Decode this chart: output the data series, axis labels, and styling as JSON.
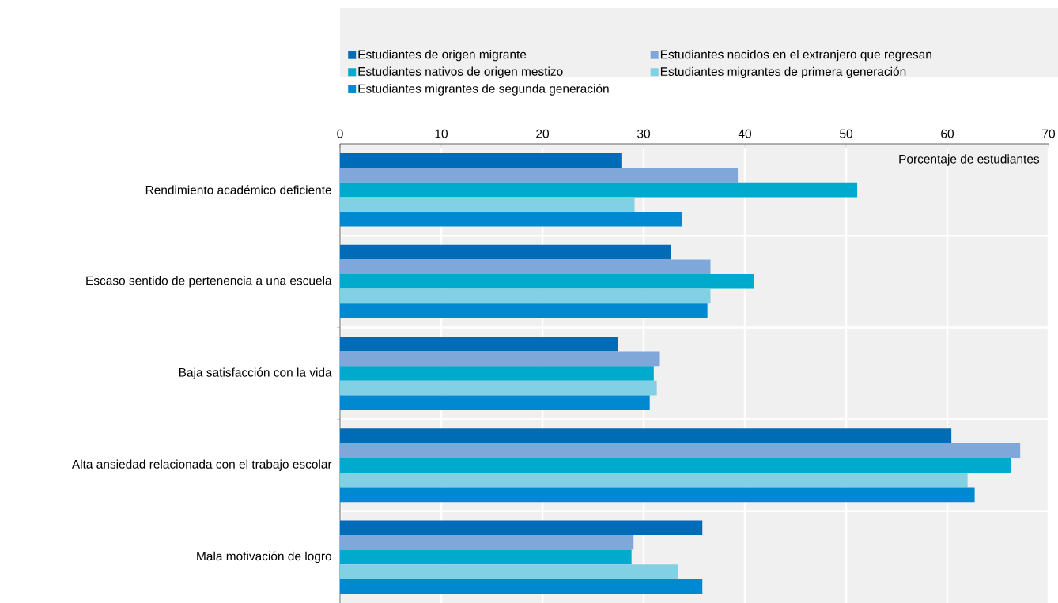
{
  "chart_data": {
    "type": "bar",
    "orientation": "horizontal",
    "xlabel": "Porcentaje de estudiantes",
    "categories": [
      "Rendimiento académico deficiente",
      "Escaso sentido de pertenencia a una escuela",
      "Baja satisfacción con la vida",
      "Alta ansiedad relacionada con el trabajo escolar",
      "Mala motivación de logro"
    ],
    "series": [
      {
        "name": "Estudiantes de origen migrante",
        "color": "#006bb6",
        "values": [
          27.8,
          32.7,
          27.5,
          60.4,
          35.8
        ]
      },
      {
        "name": "Estudiantes nacidos en el extranjero que regresan",
        "color": "#7fa7d9",
        "values": [
          39.3,
          36.6,
          31.6,
          67.2,
          29.0
        ]
      },
      {
        "name": "Estudiantes nativos de origen mestizo",
        "color": "#00aacc",
        "values": [
          51.1,
          40.9,
          31.0,
          66.3,
          28.8
        ]
      },
      {
        "name": "Estudiantes migrantes de primera generación",
        "color": "#82d0e4",
        "values": [
          29.1,
          36.6,
          31.3,
          62.0,
          33.4
        ]
      },
      {
        "name": "Estudiantes migrantes de segunda generación",
        "color": "#0088d0",
        "values": [
          33.8,
          36.3,
          30.6,
          62.7,
          35.8
        ]
      }
    ],
    "xlim": [
      0,
      70
    ],
    "xticks": [
      0,
      10,
      20,
      30,
      40,
      50,
      60,
      70
    ],
    "grid": "x",
    "legend": "top"
  }
}
